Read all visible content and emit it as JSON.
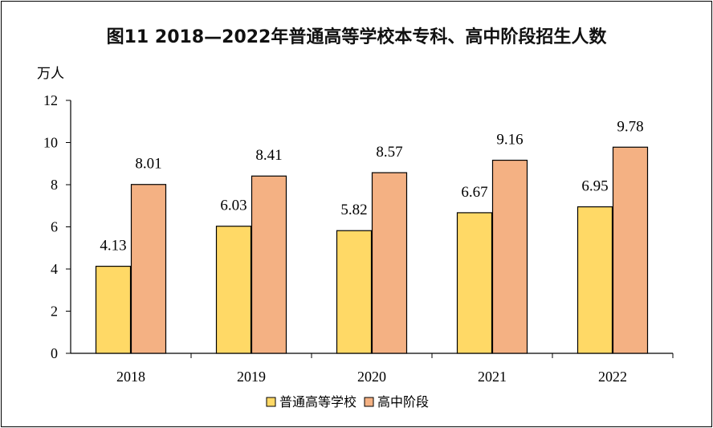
{
  "chart_data": {
    "type": "bar",
    "title": "图11   2018—2022年普通高等学校本专科、高中阶段招生人数",
    "ylabel": "万人",
    "xlabel": "",
    "ylim": [
      0,
      12
    ],
    "yticks": [
      "0",
      "2",
      "4",
      "6",
      "8",
      "10",
      "12"
    ],
    "categories": [
      "2018",
      "2019",
      "2020",
      "2021",
      "2022"
    ],
    "series": [
      {
        "name": "普通高等学校",
        "color": "#FFD966",
        "values": [
          4.13,
          6.03,
          5.82,
          6.67,
          6.95
        ],
        "labels": [
          "4.13",
          "6.03",
          "5.82",
          "6.67",
          "6.95"
        ]
      },
      {
        "name": "高中阶段",
        "color": "#F4B183",
        "values": [
          8.01,
          8.41,
          8.57,
          9.16,
          9.78
        ],
        "labels": [
          "8.01",
          "8.41",
          "8.57",
          "9.16",
          "9.78"
        ]
      }
    ],
    "grid": false,
    "legend_position": "bottom"
  }
}
